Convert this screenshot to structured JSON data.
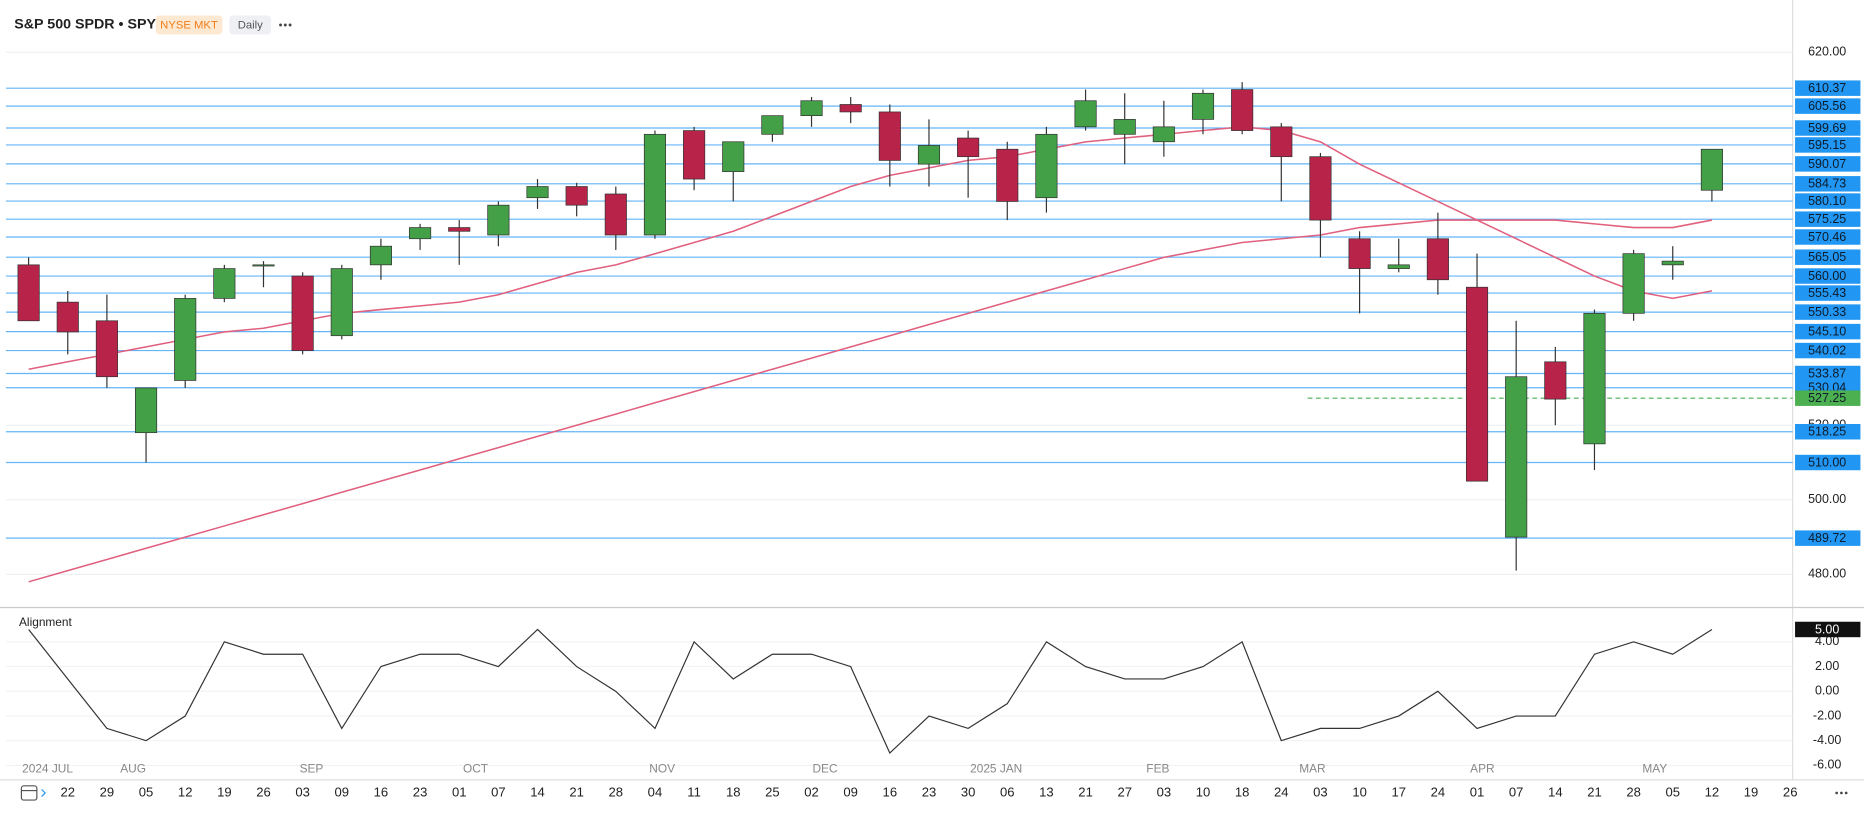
{
  "chart_data": [
    {
      "type": "candlestick",
      "title": "S&P 500 SPDR • SPY",
      "exchange": "NYSE MKT",
      "interval": "Daily",
      "categories": [
        null,
        "22",
        "29",
        "05",
        "12",
        "19",
        "26",
        "03",
        "09",
        "16",
        "23",
        "01",
        "07",
        "14",
        "21",
        "28",
        "04",
        "11",
        "18",
        "25",
        "02",
        "09",
        "16",
        "23",
        "30",
        "06",
        "13",
        "21",
        "27",
        "03",
        "10",
        "18",
        "24",
        "03",
        "10",
        "17",
        "24",
        "01",
        "07",
        "14",
        "21",
        "28",
        "05",
        "12",
        "19",
        "26"
      ],
      "month_labels": [
        "2024 JUL",
        "AUG",
        "SEP",
        "OCT",
        "NOV",
        "DEC",
        "2025 JAN",
        "FEB",
        "MAR",
        "APR",
        "MAY"
      ],
      "open": [
        563,
        553,
        548,
        518,
        532,
        554,
        563,
        560,
        544,
        563,
        570,
        573,
        571,
        581,
        584,
        582,
        571,
        599,
        588,
        598,
        603,
        606,
        604,
        590,
        597,
        594,
        581,
        600,
        598,
        596,
        602,
        610,
        600,
        592,
        570,
        562,
        570,
        557,
        490,
        537,
        515,
        550,
        563,
        583,
        null,
        null
      ],
      "high": [
        565,
        556,
        555,
        530,
        555,
        563,
        564,
        561,
        563,
        570,
        574,
        575,
        580,
        586,
        585,
        584,
        599,
        600,
        596,
        603,
        608,
        608,
        606,
        602,
        599,
        596,
        600,
        610,
        609,
        607,
        610,
        612,
        601,
        593,
        572,
        570,
        577,
        566,
        548,
        541,
        551,
        567,
        568,
        594,
        null,
        null
      ],
      "low": [
        548,
        539,
        530,
        510,
        530,
        553,
        557,
        539,
        543,
        559,
        567,
        563,
        568,
        578,
        576,
        567,
        570,
        583,
        580,
        596,
        600,
        601,
        584,
        584,
        581,
        575,
        577,
        599,
        590,
        592,
        598,
        598,
        580,
        565,
        550,
        561,
        555,
        505,
        481,
        520,
        508,
        548,
        559,
        580,
        null,
        null
      ],
      "close": [
        548,
        545,
        533,
        530,
        554,
        562,
        563,
        540,
        562,
        568,
        573,
        572,
        579,
        584,
        579,
        571,
        598,
        586,
        596,
        603,
        607,
        604,
        591,
        595,
        592,
        580,
        598,
        607,
        602,
        600,
        609,
        599,
        592,
        575,
        562,
        563,
        559,
        505,
        533,
        527,
        550,
        566,
        564,
        594,
        null,
        null
      ],
      "up_color": "#43a047",
      "down_color": "#b8234a",
      "series": [
        {
          "color": "#e0607e",
          "values": [
            535,
            537,
            539,
            541,
            543,
            545,
            546,
            548,
            550,
            551,
            552,
            553,
            555,
            558,
            561,
            563,
            566,
            569,
            572,
            576,
            580,
            584,
            587,
            589,
            591,
            592,
            594,
            596,
            597,
            598,
            599,
            600,
            599,
            596,
            590,
            585,
            580,
            575,
            570,
            565,
            560,
            556,
            554,
            556,
            null,
            null
          ]
        },
        {
          "color": "#e0607e",
          "values": [
            478,
            481,
            484,
            487,
            490,
            493,
            496,
            499,
            502,
            505,
            508,
            511,
            514,
            517,
            520,
            523,
            526,
            529,
            532,
            535,
            538,
            541,
            544,
            547,
            550,
            553,
            556,
            559,
            562,
            565,
            567,
            569,
            570,
            571,
            573,
            574,
            575,
            575,
            575,
            575,
            574,
            573,
            573,
            575,
            null,
            null
          ]
        }
      ],
      "levels": [
        610.37,
        605.56,
        599.69,
        595.15,
        590.07,
        584.73,
        {
          "value": 580.1,
          "label": "580.10"
        },
        575.25,
        570.46,
        565.05,
        {
          "value": 560,
          "label": "560.00"
        },
        555.43,
        550.33,
        {
          "value": 545.1,
          "label": "545.10"
        },
        540.02,
        533.87,
        530.04,
        518.25,
        {
          "value": 510,
          "label": "510.00"
        },
        489.72
      ],
      "level_color": "#2196f3",
      "signal_level": 527.25,
      "signal_color": "#4caf50",
      "ylim": [
        472.4,
        632.1
      ],
      "yticks": [
        {
          "value": 480,
          "label": "480.00"
        },
        {
          "value": 500,
          "label": "500.00"
        },
        {
          "value": 520,
          "label": "520.00"
        },
        {
          "value": 620,
          "label": "620.00"
        }
      ]
    },
    {
      "type": "line",
      "title": "Alignment",
      "color": "#333333",
      "values": [
        5,
        1,
        -3,
        -4,
        -2,
        4,
        3,
        3,
        -3,
        2,
        3,
        3,
        2,
        5,
        2,
        0,
        -3,
        4,
        1,
        3,
        3,
        2,
        -5,
        -2,
        -3,
        -1,
        4,
        2,
        1,
        1,
        2,
        4,
        -4,
        -3,
        -3,
        -2,
        0,
        -3,
        -2,
        -2,
        3,
        4,
        3,
        5,
        null,
        null
      ],
      "last_label": "5.00",
      "ylim": [
        -6.4,
        6.2
      ],
      "yticks": [
        {
          "value": 4,
          "label": "4.00"
        },
        {
          "value": 2,
          "label": "2.00"
        },
        {
          "value": 0,
          "label": "0.00"
        },
        {
          "value": -2,
          "label": "-2.00"
        },
        {
          "value": -4,
          "label": "-4.00"
        },
        {
          "value": -6,
          "label": "-6.00"
        }
      ]
    }
  ]
}
